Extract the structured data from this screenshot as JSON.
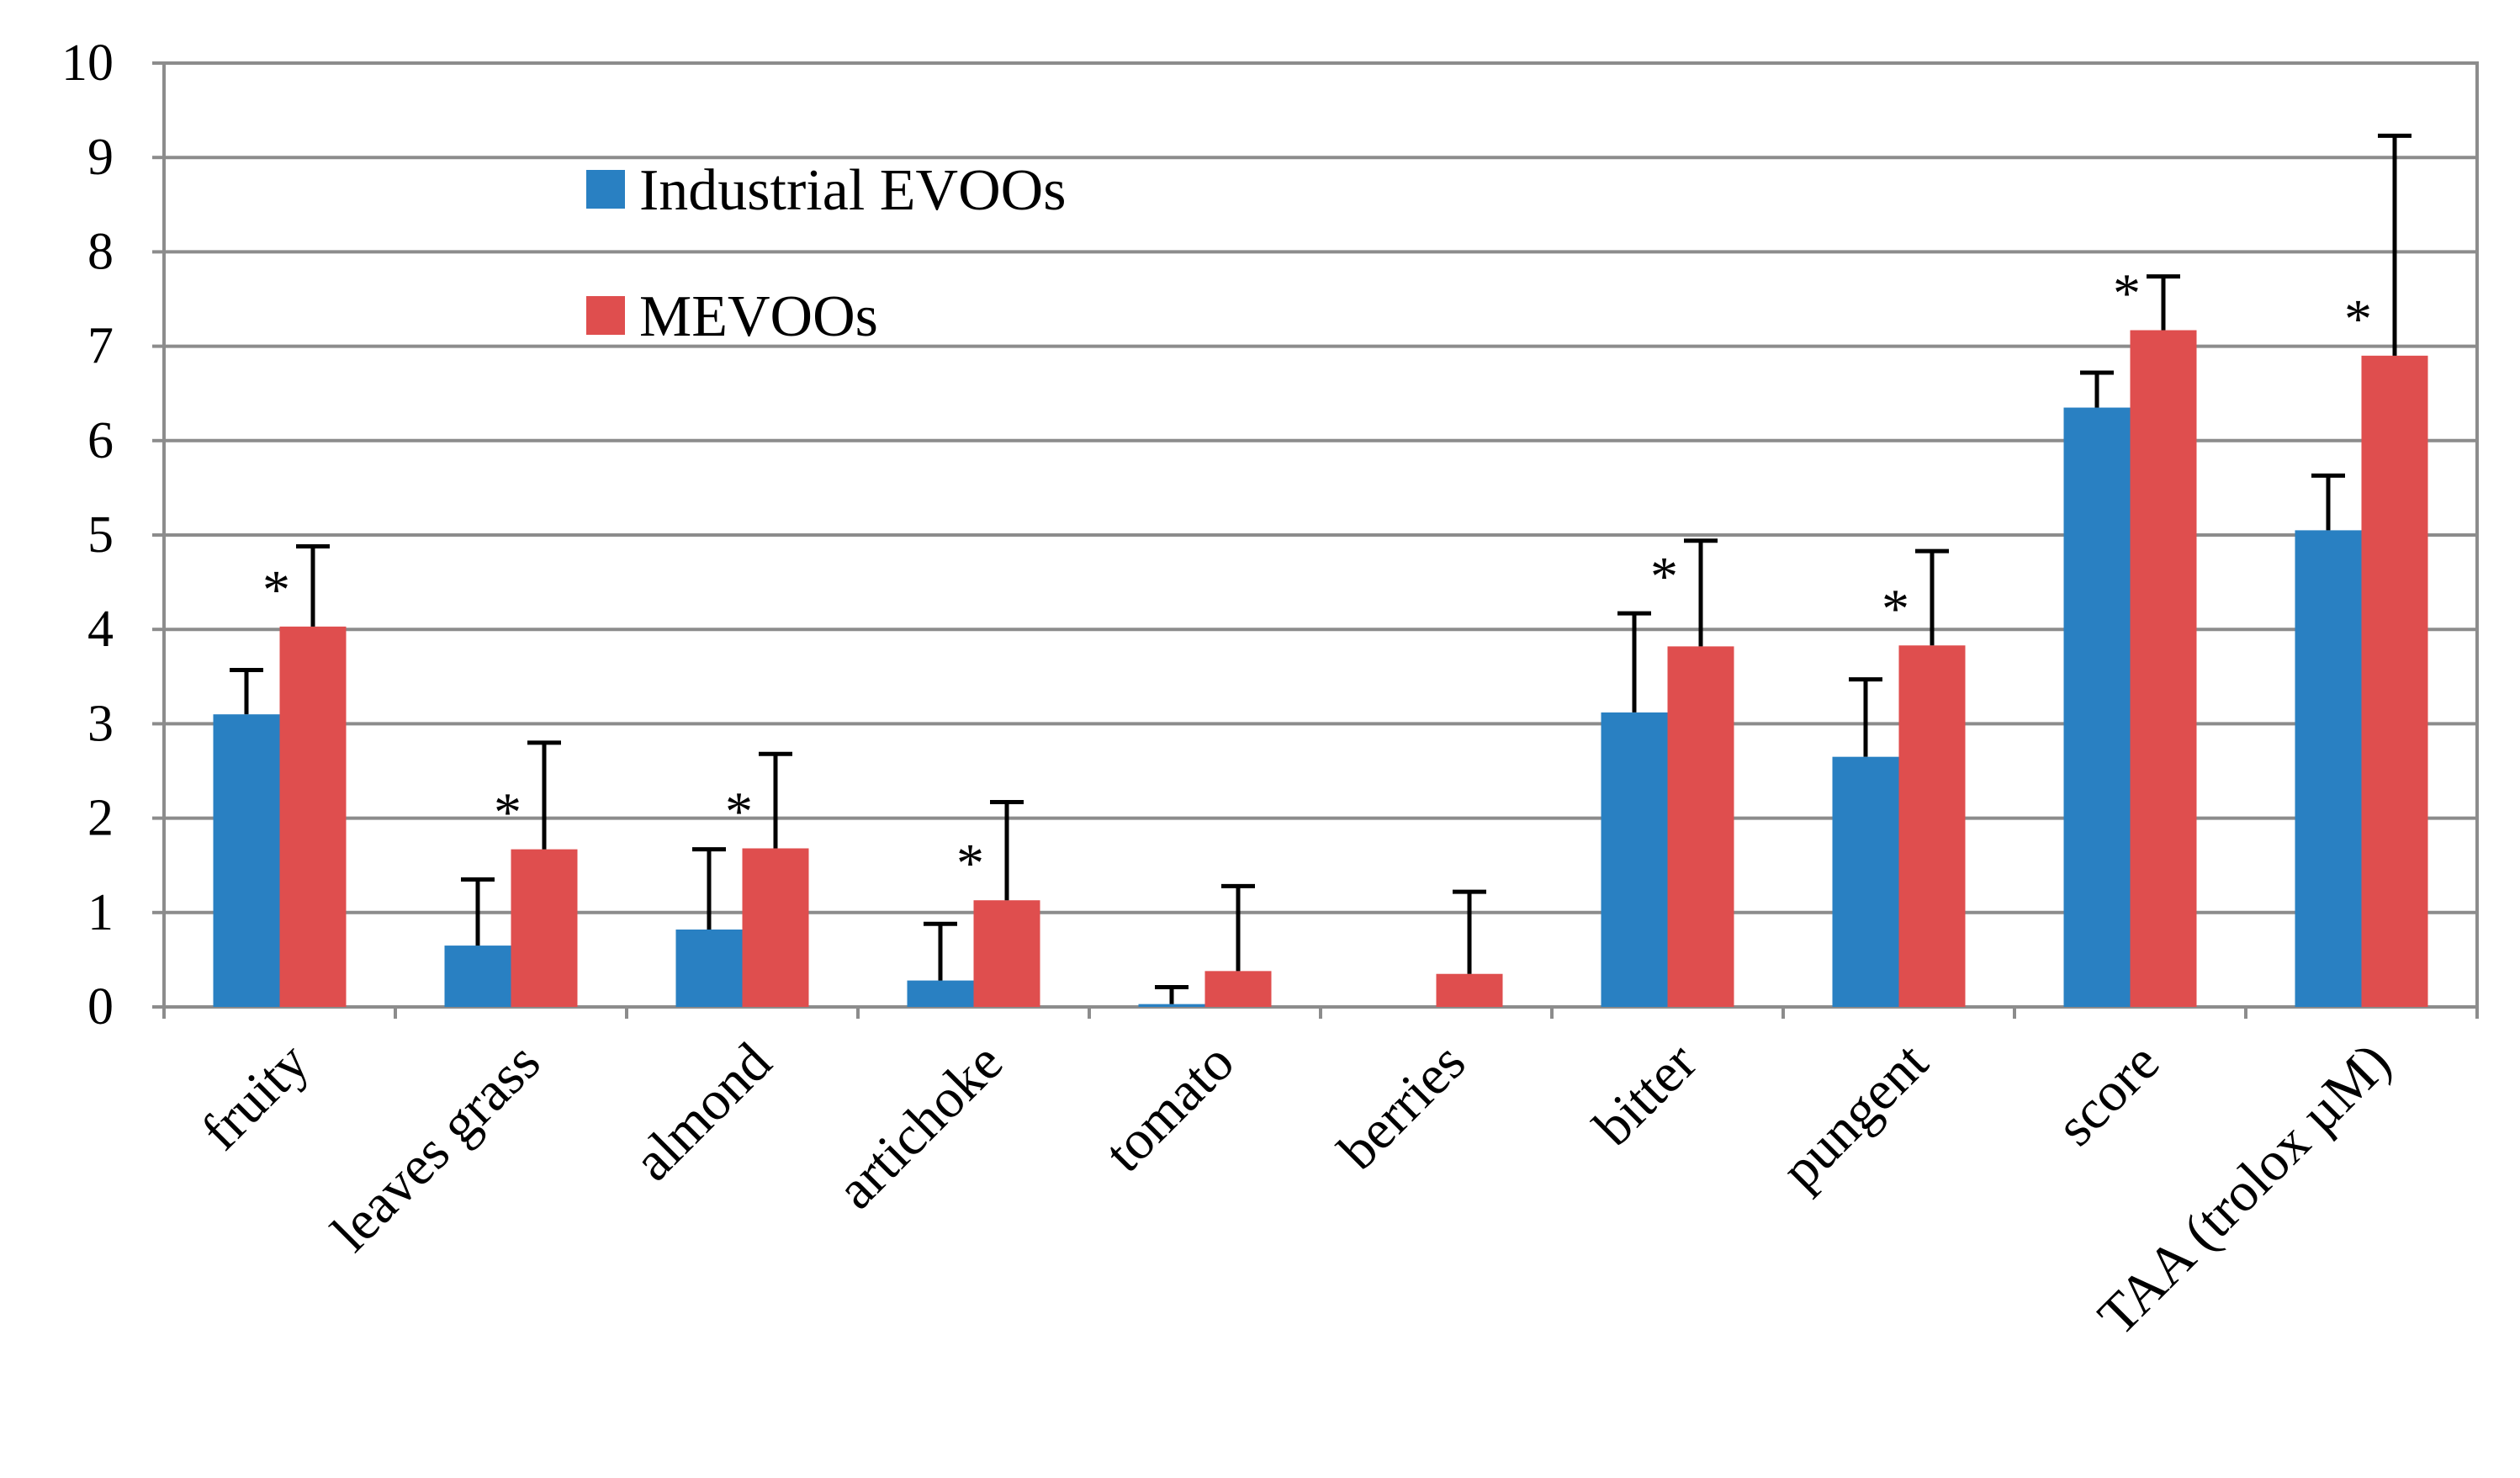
{
  "chart_data": {
    "type": "bar",
    "title": "",
    "xlabel": "",
    "ylabel": "",
    "ylim": [
      0,
      10
    ],
    "yticks": [
      "0",
      "1",
      "2",
      "3",
      "4",
      "5",
      "6",
      "7",
      "8",
      "9",
      "10"
    ],
    "grid": true,
    "legend_position": "top-left-center",
    "categories": [
      "fruity",
      "leaves grass",
      "almond",
      "artichoke",
      "tomato",
      "berries",
      "bitter",
      "pungent",
      "score",
      "TAA (trolox µM)"
    ],
    "series": [
      {
        "name": "Industrial EVOOs",
        "color": "#2980c2",
        "values": [
          3.1,
          0.65,
          0.82,
          0.28,
          0.03,
          0,
          3.12,
          2.65,
          6.35,
          5.05
        ],
        "errors": [
          0.47,
          0.7,
          0.85,
          0.6,
          0.18,
          0,
          1.05,
          0.82,
          0.37,
          0.58
        ]
      },
      {
        "name": "MEVOOs",
        "color": "#df4e4e",
        "values": [
          4.03,
          1.67,
          1.68,
          1.13,
          0.38,
          0.35,
          3.82,
          3.83,
          7.17,
          6.9
        ],
        "errors": [
          0.85,
          1.13,
          1.0,
          1.04,
          0.9,
          0.87,
          1.12,
          1.0,
          0.57,
          2.33
        ]
      }
    ],
    "annotations": [
      {
        "category": "fruity",
        "text": "*"
      },
      {
        "category": "leaves grass",
        "text": "*"
      },
      {
        "category": "almond",
        "text": "*"
      },
      {
        "category": "artichoke",
        "text": "*"
      },
      {
        "category": "bitter",
        "text": "*"
      },
      {
        "category": "pungent",
        "text": "*"
      },
      {
        "category": "score",
        "text": "*"
      },
      {
        "category": "TAA (trolox µM)",
        "text": "*"
      }
    ]
  }
}
